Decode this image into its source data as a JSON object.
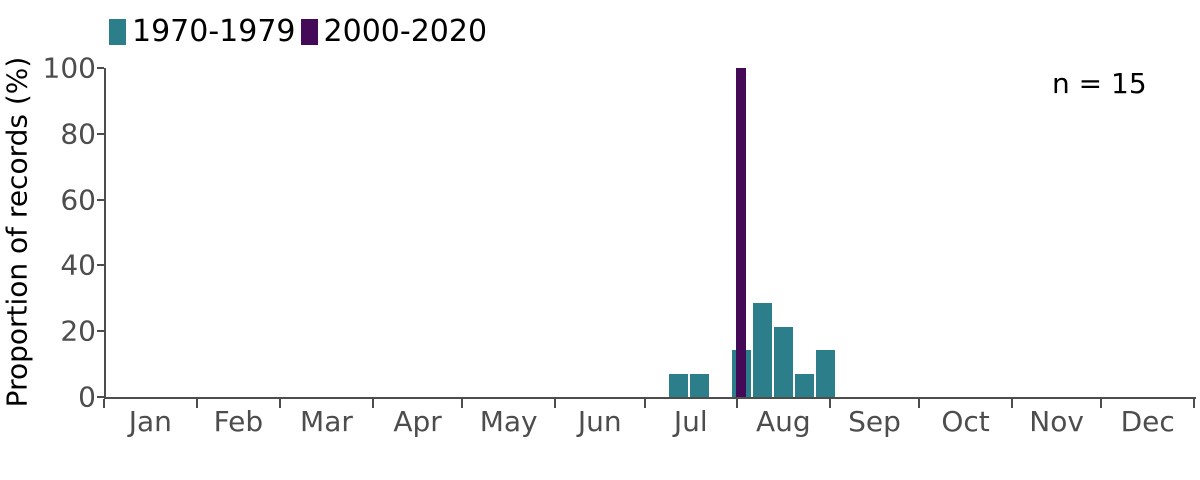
{
  "chart": {
    "y_axis": {
      "label": "Proportion of records (%)",
      "ticks": [
        0,
        20,
        40,
        60,
        80,
        100
      ]
    },
    "x_axis": {
      "months": [
        "Jan",
        "Feb",
        "Mar",
        "Apr",
        "May",
        "Jun",
        "Jul",
        "Aug",
        "Sep",
        "Oct",
        "Nov",
        "Dec"
      ],
      "month_days": [
        31,
        28,
        31,
        30,
        31,
        30,
        31,
        31,
        30,
        31,
        30,
        31
      ]
    },
    "legend": [
      {
        "label": "1970-1979",
        "color": "#2b7e8a"
      },
      {
        "label": "2000-2020",
        "color": "#440a58"
      }
    ],
    "annotation": "n = 15",
    "colors": {
      "axis": "#4d4d4d",
      "text": "#000000"
    }
  },
  "chart_data": {
    "type": "bar",
    "title": "",
    "xlabel": "",
    "ylabel": "Proportion of records (%)",
    "ylim": [
      0,
      100
    ],
    "x_axis_unit": "day of year, Jan through Dec",
    "grid": false,
    "legend_position": "top-left",
    "annotation": "n = 15",
    "series": [
      {
        "name": "1970-1979",
        "color": "#2b7e8a",
        "bin_width_days": 7,
        "bars": [
          {
            "start_day": 189,
            "end_day": 196,
            "label": "week of Jul 9",
            "value": 7.1
          },
          {
            "start_day": 196,
            "end_day": 203,
            "label": "week of Jul 16",
            "value": 7.1
          },
          {
            "start_day": 210,
            "end_day": 217,
            "label": "week of Jul 30",
            "value": 14.3
          },
          {
            "start_day": 217,
            "end_day": 224,
            "label": "week of Aug 6",
            "value": 28.6
          },
          {
            "start_day": 224,
            "end_day": 231,
            "label": "week of Aug 13",
            "value": 21.4
          },
          {
            "start_day": 231,
            "end_day": 238,
            "label": "week of Aug 20",
            "value": 7.1
          },
          {
            "start_day": 238,
            "end_day": 245,
            "label": "week of Aug 27",
            "value": 14.3
          }
        ]
      },
      {
        "name": "2000-2020",
        "color": "#440a58",
        "bars": [
          {
            "start_day": 211.6,
            "end_day": 214.9,
            "label": "circa Aug 1",
            "value": 100
          }
        ]
      }
    ]
  }
}
